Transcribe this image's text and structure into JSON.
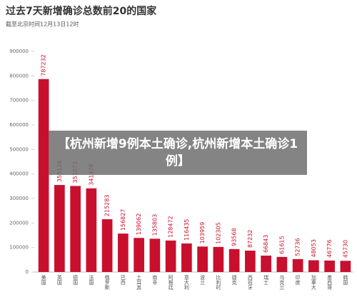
{
  "chart_data": {
    "type": "bar",
    "title": "过去7天新增确诊总数前20的国家",
    "subtitle": "截至北京时间12月13日12时",
    "categories": [
      "美国",
      "英国",
      "德国",
      "法国",
      "俄罗斯",
      "巴西",
      "土耳其",
      "南非",
      "阿根廷",
      "意大利",
      "波兰",
      "比利时",
      "捷克",
      "西班牙",
      "瑞士",
      "乌克兰",
      "印度",
      "加拿大",
      "墨西哥",
      "韩国"
    ],
    "values": [
      787232,
      355126,
      351073,
      341428,
      215283,
      156827,
      139062,
      135803,
      128472,
      116435,
      103959,
      102305,
      93568,
      87232,
      66843,
      61615,
      52736,
      48053,
      46776,
      45730
    ],
    "color": "#c8102e",
    "ylim": [
      0,
      900000
    ],
    "yticks": [
      0,
      100000,
      200000,
      300000,
      400000,
      500000,
      600000,
      700000,
      800000,
      900000
    ],
    "grid": false
  },
  "overlay": {
    "text": "【杭州新增9例本土确诊,杭州新增本土确诊1例】"
  }
}
